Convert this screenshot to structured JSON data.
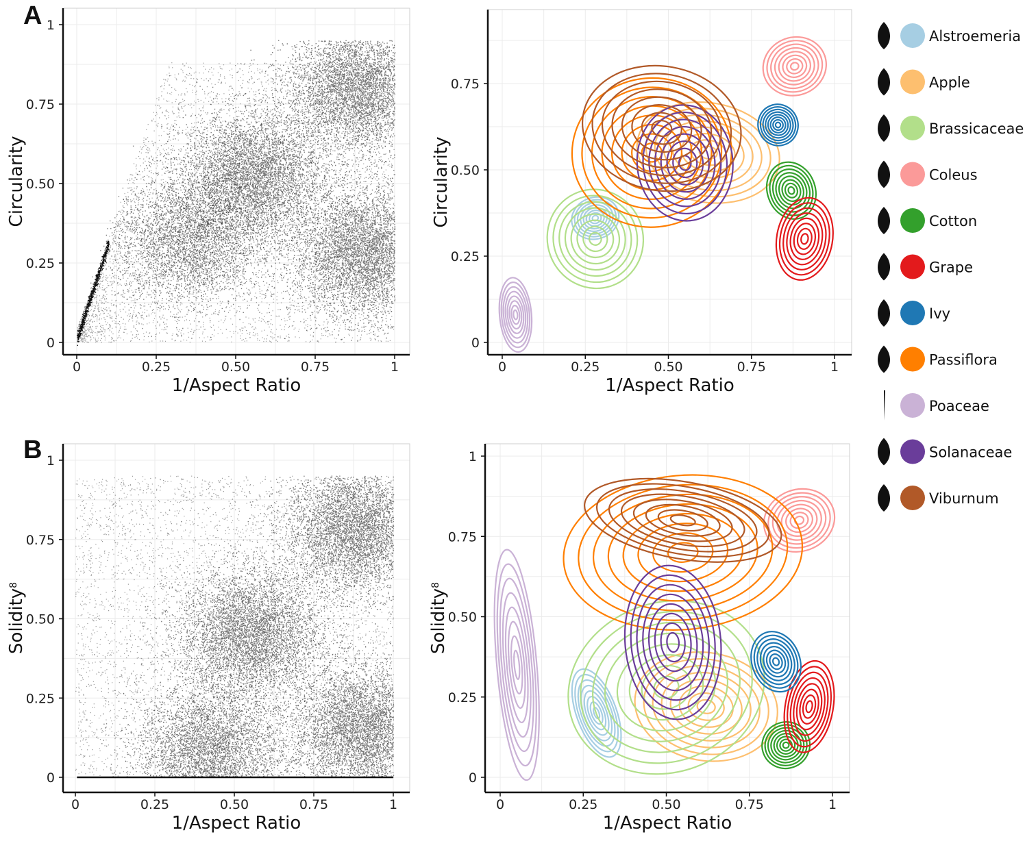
{
  "panels": {
    "A": {
      "label": "A"
    },
    "B": {
      "label": "B"
    }
  },
  "legend": {
    "items": [
      {
        "name": "Alstroemeria",
        "color": "#a6cee3",
        "icon": "narrow-leaf-icon"
      },
      {
        "name": "Apple",
        "color": "#fdbf6f",
        "icon": "ovate-leaf-icon"
      },
      {
        "name": "Brassicaceae",
        "color": "#b2df8a",
        "icon": "lobed-leaf-icon"
      },
      {
        "name": "Coleus",
        "color": "#fb9a99",
        "icon": "serrated-leaf-icon"
      },
      {
        "name": "Cotton",
        "color": "#33a02c",
        "icon": "palmate-leaf-icon"
      },
      {
        "name": "Grape",
        "color": "#e31a1c",
        "icon": "grape-leaf-icon"
      },
      {
        "name": "Ivy",
        "color": "#1f78b4",
        "icon": "ivy-leaf-icon"
      },
      {
        "name": "Passiflora",
        "color": "#ff7f00",
        "icon": "passiflora-leaf-icon"
      },
      {
        "name": "Poaceae",
        "color": "#cab2d6",
        "icon": "grass-blade-icon"
      },
      {
        "name": "Solanaceae",
        "color": "#6a3d9a",
        "icon": "solanaceae-leaf-icon"
      },
      {
        "name": "Viburnum",
        "color": "#b15928",
        "icon": "viburnum-leaf-icon"
      }
    ]
  },
  "chart_data": [
    {
      "id": "A-scatter",
      "type": "scatter",
      "panel": "A",
      "xlabel": "1/Aspect Ratio",
      "ylabel": "Circularity",
      "xlim": [
        0,
        1
      ],
      "ylim": [
        0,
        1
      ],
      "xticks": [
        "0",
        "0.25",
        "0.50",
        "0.75",
        "1"
      ],
      "yticks": [
        "0",
        "0.25",
        "0.50",
        "0.75",
        "1"
      ],
      "grid": true,
      "density_clusters": [
        {
          "x": 0.55,
          "y": 0.52,
          "weight": 1.0
        },
        {
          "x": 0.88,
          "y": 0.8,
          "weight": 0.9
        },
        {
          "x": 0.9,
          "y": 0.28,
          "weight": 0.7
        },
        {
          "x": 0.35,
          "y": 0.32,
          "weight": 0.4
        }
      ]
    },
    {
      "id": "A-contour",
      "type": "contour",
      "panel": "A",
      "xlabel": "1/Aspect Ratio",
      "ylabel": "Circularity",
      "xlim": [
        0,
        1
      ],
      "ylim": [
        0,
        0.85
      ],
      "xticks": [
        "0",
        "0.25",
        "0.50",
        "0.75",
        "1"
      ],
      "yticks": [
        "0",
        "0.25",
        "0.50",
        "0.75"
      ],
      "grid": true,
      "series": [
        {
          "name": "Alstroemeria",
          "center": [
            0.28,
            0.36
          ],
          "spread": [
            0.06,
            0.05
          ]
        },
        {
          "name": "Apple",
          "center": [
            0.62,
            0.55
          ],
          "spread": [
            0.18,
            0.12
          ]
        },
        {
          "name": "Brassicaceae",
          "center": [
            0.28,
            0.3
          ],
          "spread": [
            0.12,
            0.12
          ]
        },
        {
          "name": "Coleus",
          "center": [
            0.88,
            0.8
          ],
          "spread": [
            0.08,
            0.07
          ]
        },
        {
          "name": "Cotton",
          "center": [
            0.87,
            0.44
          ],
          "spread": [
            0.06,
            0.07
          ]
        },
        {
          "name": "Grape",
          "center": [
            0.91,
            0.3
          ],
          "spread": [
            0.07,
            0.1
          ]
        },
        {
          "name": "Ivy",
          "center": [
            0.83,
            0.63
          ],
          "spread": [
            0.05,
            0.05
          ]
        },
        {
          "name": "Passiflora",
          "center": [
            0.45,
            0.55
          ],
          "spread": [
            0.2,
            0.18
          ]
        },
        {
          "name": "Poaceae",
          "center": [
            0.04,
            0.08
          ],
          "spread": [
            0.04,
            0.09
          ]
        },
        {
          "name": "Solanaceae",
          "center": [
            0.55,
            0.52
          ],
          "spread": [
            0.12,
            0.14
          ]
        },
        {
          "name": "Viburnum",
          "center": [
            0.48,
            0.62
          ],
          "spread": [
            0.2,
            0.15
          ]
        }
      ]
    },
    {
      "id": "B-scatter",
      "type": "scatter",
      "panel": "B",
      "xlabel": "1/Aspect Ratio",
      "ylabel": "Solidity",
      "ylabel_sup": "8",
      "xlim": [
        0,
        1
      ],
      "ylim": [
        0,
        1
      ],
      "xticks": [
        "0",
        "0.25",
        "0.50",
        "0.75",
        "1"
      ],
      "yticks": [
        "0",
        "0.25",
        "0.50",
        "0.75",
        "1"
      ],
      "grid": true,
      "density_clusters": [
        {
          "x": 0.55,
          "y": 0.45,
          "weight": 1.0
        },
        {
          "x": 0.88,
          "y": 0.78,
          "weight": 0.9
        },
        {
          "x": 0.9,
          "y": 0.15,
          "weight": 0.7
        },
        {
          "x": 0.42,
          "y": 0.08,
          "weight": 0.5
        }
      ]
    },
    {
      "id": "B-contour",
      "type": "contour",
      "panel": "B",
      "xlabel": "1/Aspect Ratio",
      "ylabel": "Solidity",
      "ylabel_sup": "8",
      "xlim": [
        0,
        1
      ],
      "ylim": [
        0,
        1
      ],
      "xticks": [
        "0",
        "0.25",
        "0.50",
        "0.75",
        "1"
      ],
      "yticks": [
        "0",
        "0.25",
        "0.50",
        "0.75",
        "1"
      ],
      "grid": true,
      "series": [
        {
          "name": "Alstroemeria",
          "center": [
            0.29,
            0.2
          ],
          "spread": [
            0.05,
            0.12
          ]
        },
        {
          "name": "Apple",
          "center": [
            0.62,
            0.22
          ],
          "spread": [
            0.18,
            0.14
          ]
        },
        {
          "name": "Brassicaceae",
          "center": [
            0.5,
            0.28
          ],
          "spread": [
            0.25,
            0.22
          ]
        },
        {
          "name": "Coleus",
          "center": [
            0.9,
            0.8
          ],
          "spread": [
            0.09,
            0.08
          ]
        },
        {
          "name": "Cotton",
          "center": [
            0.86,
            0.1
          ],
          "spread": [
            0.06,
            0.06
          ]
        },
        {
          "name": "Grape",
          "center": [
            0.93,
            0.22
          ],
          "spread": [
            0.06,
            0.12
          ]
        },
        {
          "name": "Ivy",
          "center": [
            0.83,
            0.36
          ],
          "spread": [
            0.06,
            0.08
          ]
        },
        {
          "name": "Passiflora",
          "center": [
            0.55,
            0.7
          ],
          "spread": [
            0.3,
            0.2
          ]
        },
        {
          "name": "Poaceae",
          "center": [
            0.05,
            0.35
          ],
          "spread": [
            0.05,
            0.3
          ]
        },
        {
          "name": "Solanaceae",
          "center": [
            0.52,
            0.42
          ],
          "spread": [
            0.12,
            0.2
          ]
        },
        {
          "name": "Viburnum",
          "center": [
            0.55,
            0.8
          ],
          "spread": [
            0.25,
            0.1
          ]
        }
      ]
    }
  ]
}
